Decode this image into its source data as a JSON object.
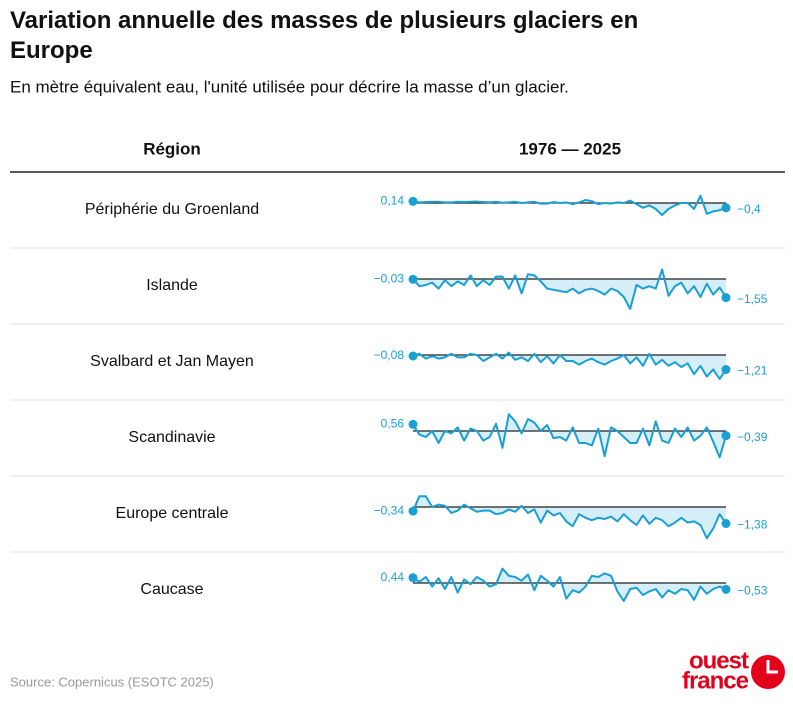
{
  "chart_data": {
    "type": "sparkline",
    "title": "Variation annuelle des masses de plusieurs glaciers en Europe",
    "subtitle": "En mètre équivalent eau, l'unité utilisée pour décrire la masse d’un glacier.",
    "column_headers": [
      "Région",
      "1976 — 2025"
    ],
    "series": [
      {
        "name": "Périphérie du Groenland",
        "color": "#1a9fd4",
        "values": [
          0.14,
          0.05,
          0.08,
          0.1,
          0.1,
          0.05,
          0.05,
          0.1,
          0.08,
          0.1,
          0.12,
          0.08,
          0.05,
          0.1,
          0.02,
          0.05,
          0.1,
          0.0,
          0.05,
          0.1,
          -0.05,
          -0.05,
          0.08,
          0.0,
          0.05,
          -0.1,
          0.05,
          0.25,
          0.15,
          -0.1,
          0.0,
          -0.05,
          0.05,
          0.0,
          0.2,
          -0.1,
          -0.4,
          -0.2,
          -0.5,
          -1.0,
          -0.5,
          -0.2,
          0.0,
          0.0,
          -0.5,
          0.6,
          -0.9,
          -0.7,
          -0.6,
          -0.4
        ],
        "value_labels": [
          "0,14",
          null,
          null,
          null,
          null,
          null,
          null,
          null,
          null,
          null,
          null,
          null,
          null,
          null,
          null,
          null,
          null,
          null,
          null,
          null,
          null,
          null,
          null,
          null,
          null,
          null,
          null,
          null,
          null,
          null,
          null,
          null,
          null,
          null,
          null,
          null,
          null,
          null,
          null,
          null,
          null,
          null,
          null,
          null,
          null,
          null,
          null,
          null,
          null,
          "−0,4"
        ]
      },
      {
        "name": "Islande",
        "color": "#1a9fd4",
        "values": [
          -0.03,
          -0.6,
          -0.5,
          -0.3,
          -0.8,
          -0.1,
          -0.6,
          -0.2,
          -0.5,
          0.3,
          -0.6,
          -0.1,
          -0.5,
          0.2,
          0.2,
          -0.8,
          0.3,
          -1.2,
          0.4,
          0.3,
          -0.2,
          -0.8,
          -0.9,
          -1.0,
          -1.1,
          -0.8,
          -1.2,
          -0.9,
          -0.8,
          -1.0,
          -1.3,
          -0.8,
          -1.0,
          -1.5,
          -2.5,
          -0.5,
          -0.8,
          -0.6,
          -0.8,
          0.8,
          -1.4,
          -0.6,
          -0.3,
          -1.2,
          -0.6,
          -1.5,
          -0.4,
          -1.3,
          -0.7,
          -1.55
        ],
        "value_labels": [
          "−0,03",
          null,
          null,
          null,
          null,
          null,
          null,
          null,
          null,
          null,
          null,
          null,
          null,
          null,
          null,
          null,
          null,
          null,
          null,
          null,
          null,
          null,
          null,
          null,
          null,
          null,
          null,
          null,
          null,
          null,
          null,
          null,
          null,
          null,
          null,
          null,
          null,
          null,
          null,
          null,
          null,
          null,
          null,
          null,
          null,
          null,
          null,
          null,
          null,
          "−1,55"
        ]
      },
      {
        "name": "Svalbard et Jan Mayen",
        "color": "#1a9fd4",
        "values": [
          -0.08,
          0.1,
          -0.3,
          -0.1,
          -0.3,
          -0.2,
          0.1,
          -0.2,
          -0.2,
          0.1,
          0.0,
          -0.5,
          -0.2,
          0.1,
          -0.3,
          0.2,
          -0.4,
          -0.2,
          -0.5,
          0.1,
          -0.6,
          -0.1,
          -0.7,
          0.0,
          -0.5,
          -0.5,
          -0.8,
          -0.5,
          -0.3,
          -0.6,
          -0.8,
          -0.5,
          -0.3,
          0.0,
          -0.7,
          -0.2,
          -0.9,
          0.1,
          -0.8,
          -0.4,
          -0.9,
          -0.6,
          -1.0,
          -0.7,
          -1.6,
          -0.9,
          -1.8,
          -1.2,
          -2.0,
          -1.21
        ],
        "value_labels": [
          "−0,08",
          null,
          null,
          null,
          null,
          null,
          null,
          null,
          null,
          null,
          null,
          null,
          null,
          null,
          null,
          null,
          null,
          null,
          null,
          null,
          null,
          null,
          null,
          null,
          null,
          null,
          null,
          null,
          null,
          null,
          null,
          null,
          null,
          null,
          null,
          null,
          null,
          null,
          null,
          null,
          null,
          null,
          null,
          null,
          null,
          null,
          null,
          null,
          null,
          "−1,21"
        ]
      },
      {
        "name": "Scandinavie",
        "color": "#1a9fd4",
        "values": [
          0.56,
          -0.3,
          -0.5,
          0.0,
          -1.0,
          0.0,
          -0.2,
          0.3,
          -0.8,
          0.2,
          0.0,
          -0.8,
          -0.5,
          0.6,
          -1.4,
          1.4,
          0.8,
          -0.2,
          1.0,
          0.7,
          0.0,
          0.5,
          -0.6,
          -0.5,
          -0.8,
          0.3,
          -1.0,
          -1.0,
          -1.2,
          0.2,
          -2.1,
          0.3,
          0.0,
          -0.5,
          -1.0,
          -1.0,
          0.2,
          -1.2,
          0.8,
          -0.8,
          -1.0,
          0.2,
          -0.5,
          0.3,
          -0.8,
          -0.4,
          0.3,
          -0.9,
          -2.2,
          -0.39
        ],
        "value_labels": [
          "0,56",
          null,
          null,
          null,
          null,
          null,
          null,
          null,
          null,
          null,
          null,
          null,
          null,
          null,
          null,
          null,
          null,
          null,
          null,
          null,
          null,
          null,
          null,
          null,
          null,
          null,
          null,
          null,
          null,
          null,
          null,
          null,
          null,
          null,
          null,
          null,
          null,
          null,
          null,
          null,
          null,
          null,
          null,
          null,
          null,
          null,
          null,
          null,
          null,
          "−0,39"
        ]
      },
      {
        "name": "Europe centrale",
        "color": "#1a9fd4",
        "values": [
          -0.34,
          0.9,
          0.9,
          0.0,
          0.2,
          0.1,
          -0.5,
          -0.3,
          0.2,
          -0.1,
          -0.4,
          -0.3,
          -0.3,
          -0.6,
          -0.5,
          -0.2,
          -0.4,
          0.1,
          -0.5,
          -0.2,
          -1.3,
          -0.3,
          -0.7,
          -0.5,
          -1.2,
          -1.6,
          -0.6,
          -0.9,
          -1.1,
          -0.9,
          -1.0,
          -0.8,
          -1.2,
          -0.6,
          -1.1,
          -1.5,
          -0.7,
          -1.4,
          -0.9,
          -1.1,
          -1.6,
          -1.3,
          -0.9,
          -1.3,
          -1.2,
          -1.5,
          -2.6,
          -1.8,
          -0.6,
          -1.38
        ],
        "value_labels": [
          "−0,34",
          null,
          null,
          null,
          null,
          null,
          null,
          null,
          null,
          null,
          null,
          null,
          null,
          null,
          null,
          null,
          null,
          null,
          null,
          null,
          null,
          null,
          null,
          null,
          null,
          null,
          null,
          null,
          null,
          null,
          null,
          null,
          null,
          null,
          null,
          null,
          null,
          null,
          null,
          null,
          null,
          null,
          null,
          null,
          null,
          null,
          null,
          null,
          null,
          "−1,38"
        ]
      },
      {
        "name": "Caucase",
        "color": "#1a9fd4",
        "values": [
          0.44,
          0.1,
          0.5,
          -0.3,
          0.4,
          -0.5,
          0.5,
          -0.8,
          0.3,
          -0.1,
          0.5,
          0.2,
          -0.3,
          -0.1,
          1.2,
          0.6,
          0.5,
          0.2,
          0.7,
          -0.6,
          0.6,
          0.2,
          -0.3,
          0.5,
          -1.3,
          -0.6,
          -0.8,
          -0.3,
          0.6,
          0.5,
          0.8,
          0.6,
          -0.7,
          -1.5,
          -0.5,
          -0.4,
          -1.0,
          -0.7,
          -0.5,
          -1.2,
          -0.6,
          -0.9,
          -0.5,
          -0.6,
          -1.4,
          -0.3,
          -0.9,
          -0.5,
          -0.3,
          -0.53
        ],
        "value_labels": [
          "0,44",
          null,
          null,
          null,
          null,
          null,
          null,
          null,
          null,
          null,
          null,
          null,
          null,
          null,
          null,
          null,
          null,
          null,
          null,
          null,
          null,
          null,
          null,
          null,
          null,
          null,
          null,
          null,
          null,
          null,
          null,
          null,
          null,
          null,
          null,
          null,
          null,
          null,
          null,
          null,
          null,
          null,
          null,
          null,
          null,
          null,
          null,
          null,
          null,
          "−0,53"
        ]
      }
    ],
    "source": "Source: Copernicus (ESOTC 2025)",
    "logo": [
      "ouest",
      "france"
    ]
  }
}
